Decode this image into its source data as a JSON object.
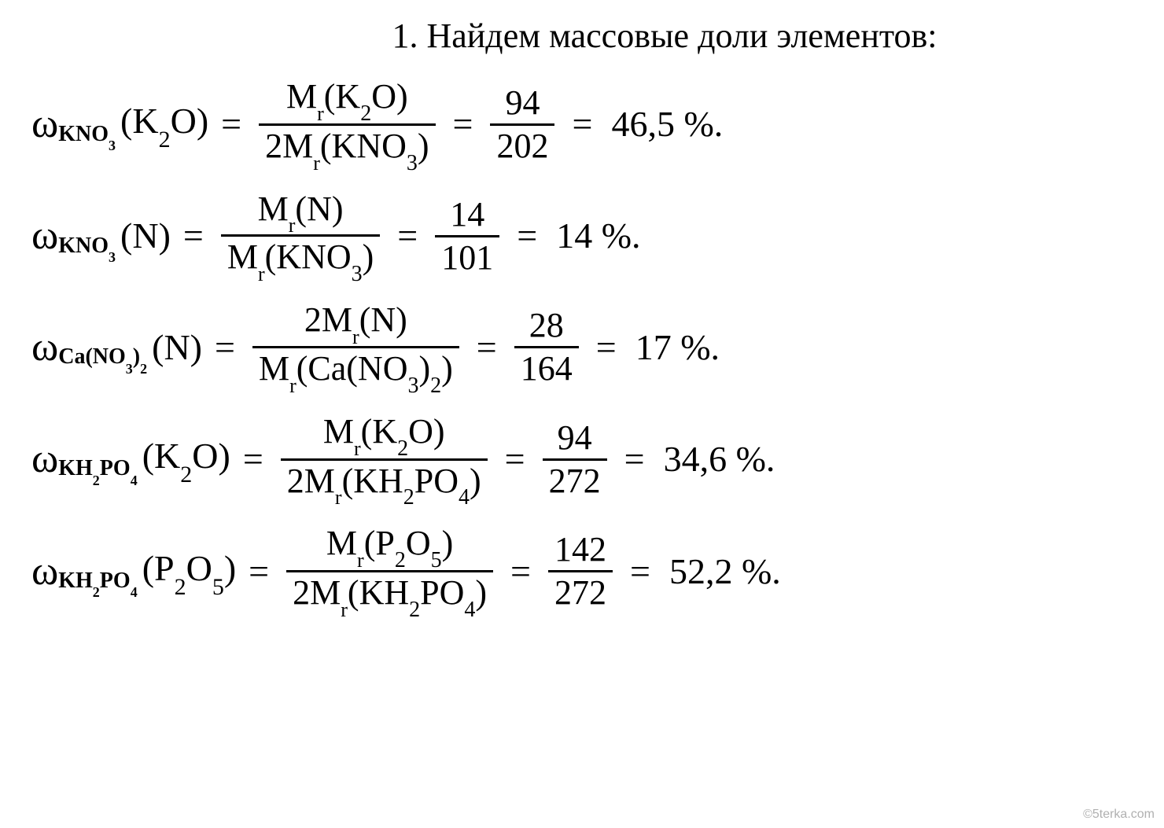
{
  "heading": "1. Найдем массовые доли элементов:",
  "watermark": "©5terka.com",
  "equations": [
    {
      "omega_sub": "KNO",
      "omega_sub_inner": "3",
      "element": "K",
      "element_sub": "2",
      "element_suffix": "O",
      "num_prefix": "M",
      "num_mr_sub": "r",
      "num_open": "(K",
      "num_chem_sub": "2",
      "num_close": "O)",
      "den_prefix": "2M",
      "den_mr_sub": "r",
      "den_open": "(KNO",
      "den_chem_sub": "3",
      "den_close": ")",
      "frac_num": "94",
      "frac_den": "202",
      "result": "46,5 %."
    },
    {
      "omega_sub": "KNO",
      "omega_sub_inner": "3",
      "element": "N",
      "element_sub": "",
      "element_suffix": "",
      "num_prefix": "M",
      "num_mr_sub": "r",
      "num_open": "(N)",
      "num_chem_sub": "",
      "num_close": "",
      "den_prefix": "M",
      "den_mr_sub": "r",
      "den_open": "(KNO",
      "den_chem_sub": "3",
      "den_close": ")",
      "frac_num": "14",
      "frac_den": "101",
      "result": "14 %."
    },
    {
      "omega_sub": "Ca(NO",
      "omega_sub_inner": "3",
      "omega_sub_tail": ")",
      "omega_sub_tail_inner": "2",
      "element": "N",
      "element_sub": "",
      "element_suffix": "",
      "num_prefix": "2M",
      "num_mr_sub": "r",
      "num_open": "(N)",
      "num_chem_sub": "",
      "num_close": "",
      "den_prefix": "M",
      "den_mr_sub": "r",
      "den_open": "(Ca(NO",
      "den_chem_sub": "3",
      "den_mid": ")",
      "den_chem_sub2": "2",
      "den_close": ")",
      "frac_num": "28",
      "frac_den": "164",
      "result": "17 %."
    },
    {
      "omega_sub": "KH",
      "omega_sub_inner": "2",
      "omega_sub_tail": "PO",
      "omega_sub_tail_inner": "4",
      "element": "K",
      "element_sub": "2",
      "element_suffix": "O",
      "num_prefix": "M",
      "num_mr_sub": "r",
      "num_open": "(K",
      "num_chem_sub": "2",
      "num_close": "O)",
      "den_prefix": "2M",
      "den_mr_sub": "r",
      "den_open": "(KH",
      "den_chem_sub": "2",
      "den_mid": "PO",
      "den_chem_sub2": "4",
      "den_close": ")",
      "frac_num": "94",
      "frac_den": "272",
      "result": "34,6 %."
    },
    {
      "omega_sub": "KH",
      "omega_sub_inner": "2",
      "omega_sub_tail": "PO",
      "omega_sub_tail_inner": "4",
      "element": "P",
      "element_sub": "2",
      "element_suffix": "O",
      "element_suffix_sub": "5",
      "num_prefix": "M",
      "num_mr_sub": "r",
      "num_open": "(P",
      "num_chem_sub": "2",
      "num_mid": "O",
      "num_chem_sub2": "5",
      "num_close": ")",
      "den_prefix": "2M",
      "den_mr_sub": "r",
      "den_open": "(KH",
      "den_chem_sub": "2",
      "den_mid": "PO",
      "den_chem_sub2": "4",
      "den_close": ")",
      "frac_num": "142",
      "frac_den": "272",
      "result": "52,2 %."
    }
  ],
  "labels": {
    "equals": "=",
    "omega": "ω"
  },
  "styling": {
    "background_color": "#ffffff",
    "text_color": "#000000",
    "font_family": "Times New Roman",
    "base_font_size": 46,
    "heading_font_size": 44,
    "subscript_font_size": 28,
    "fraction_border_width": 3,
    "watermark_color": "#b0b0b0"
  }
}
